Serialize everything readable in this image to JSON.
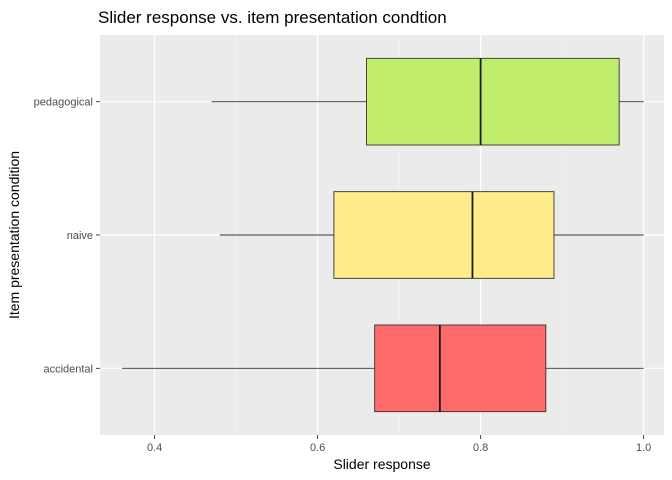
{
  "chart_data": {
    "type": "boxplot",
    "orientation": "horizontal",
    "title": "Slider response vs. item presentation condtion",
    "xlabel": "Slider response",
    "ylabel": "Item presentation condition",
    "xlim": [
      0.333,
      1.025
    ],
    "xticks": [
      0.4,
      0.6,
      0.8,
      1.0
    ],
    "xtick_labels": [
      "0.4",
      "0.6",
      "0.8",
      "1.0"
    ],
    "grid": true,
    "legend": "none",
    "categories": [
      "accidental",
      "naive",
      "pedagogical"
    ],
    "boxes": [
      {
        "category": "accidental",
        "min": 0.36,
        "q1": 0.67,
        "median": 0.75,
        "q3": 0.88,
        "max": 1.0,
        "color": "#ff6a6a"
      },
      {
        "category": "naive",
        "min": 0.48,
        "q1": 0.62,
        "median": 0.79,
        "q3": 0.89,
        "max": 1.0,
        "color": "#ffec8b"
      },
      {
        "category": "pedagogical",
        "min": 0.47,
        "q1": 0.66,
        "median": 0.8,
        "q3": 0.97,
        "max": 1.0,
        "color": "#c0ee6b"
      }
    ]
  }
}
